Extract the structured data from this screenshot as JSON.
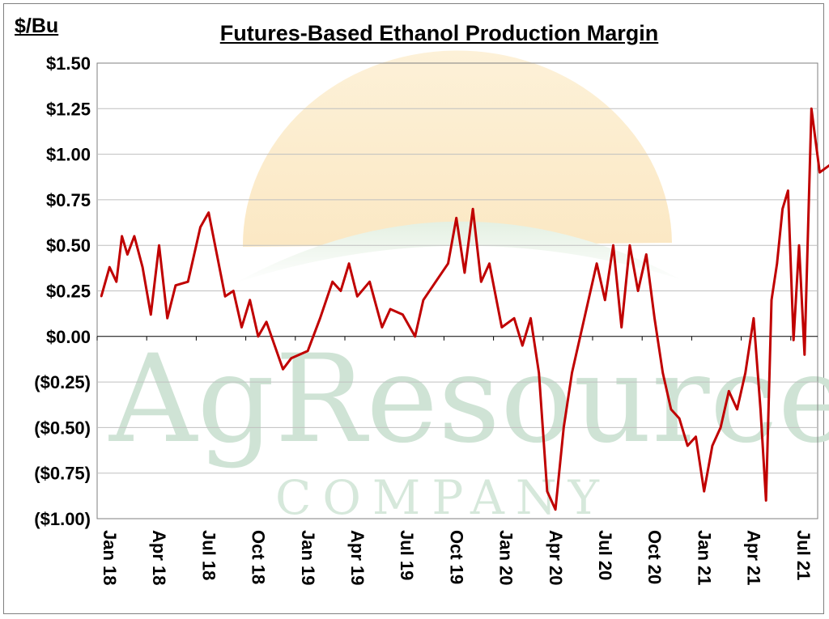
{
  "unit_label": "$/Bu",
  "watermark": {
    "name": "AgResource",
    "sub": "COMPANY"
  },
  "chart_data": {
    "type": "line",
    "title": "Futures-Based Ethanol Production Margin",
    "ylabel": "$/Bu",
    "xlabel": "",
    "ylim": [
      -1.0,
      1.5
    ],
    "yticks": [
      1.5,
      1.25,
      1.0,
      0.75,
      0.5,
      0.25,
      0.0,
      -0.25,
      -0.5,
      -0.75,
      -1.0
    ],
    "ytick_labels": [
      "$1.50",
      "$1.25",
      "$1.00",
      "$0.75",
      "$0.50",
      "$0.25",
      "$0.00",
      "($0.25)",
      "($0.50)",
      "($0.75)",
      "($1.00)"
    ],
    "xtick_labels": [
      "Jan 18",
      "Apr 18",
      "Jul 18",
      "Oct 18",
      "Jan 19",
      "Apr 19",
      "Jul 19",
      "Oct 19",
      "Jan 20",
      "Apr 20",
      "Jul 20",
      "Oct 20",
      "Jan 21",
      "Apr 21",
      "Jul 21"
    ],
    "grid": true,
    "line_color": "#c00000",
    "series": [
      {
        "x": [
          "2018-01",
          "2018-01",
          "2018-02",
          "2018-02",
          "2018-02",
          "2018-03",
          "2018-03",
          "2018-04",
          "2018-04",
          "2018-05",
          "2018-05",
          "2018-06",
          "2018-07",
          "2018-07",
          "2018-08",
          "2018-08",
          "2018-09",
          "2018-09",
          "2018-10",
          "2018-10",
          "2018-11",
          "2018-11",
          "2018-12",
          "2018-12",
          "2019-01",
          "2019-01",
          "2019-02",
          "2019-03",
          "2019-03",
          "2019-04",
          "2019-04",
          "2019-05",
          "2019-06",
          "2019-06",
          "2019-07",
          "2019-08",
          "2019-08",
          "2019-09",
          "2019-10",
          "2019-10",
          "2019-11",
          "2019-11",
          "2019-12",
          "2019-12",
          "2020-01",
          "2020-02",
          "2020-02",
          "2020-03",
          "2020-03",
          "2020-04",
          "2020-04",
          "2020-05",
          "2020-05",
          "2020-06",
          "2020-07",
          "2020-07",
          "2020-08",
          "2020-08",
          "2020-09",
          "2020-09",
          "2020-10",
          "2020-10",
          "2020-11",
          "2020-11",
          "2020-12",
          "2020-12",
          "2021-01",
          "2021-01",
          "2021-02",
          "2021-02",
          "2021-03",
          "2021-03",
          "2021-04",
          "2021-04",
          "2021-05",
          "2021-05",
          "2021-05",
          "2021-06",
          "2021-06",
          "2021-06",
          "2021-07",
          "2021-07",
          "2021-07",
          "2021-08",
          "2021-08",
          "2021-09"
        ],
        "y": [
          0.22,
          0.38,
          0.3,
          0.55,
          0.45,
          0.55,
          0.38,
          0.12,
          0.5,
          0.1,
          0.28,
          0.3,
          0.6,
          0.68,
          0.45,
          0.22,
          0.25,
          0.05,
          0.2,
          0.0,
          0.08,
          -0.05,
          -0.18,
          -0.12,
          -0.1,
          -0.08,
          0.1,
          0.3,
          0.25,
          0.4,
          0.22,
          0.3,
          0.05,
          0.15,
          0.12,
          0.0,
          0.2,
          0.3,
          0.4,
          0.65,
          0.35,
          0.7,
          0.3,
          0.4,
          0.05,
          0.1,
          -0.05,
          0.1,
          -0.2,
          -0.85,
          -0.95,
          -0.5,
          -0.2,
          0.1,
          0.4,
          0.2,
          0.5,
          0.05,
          0.5,
          0.25,
          0.45,
          0.1,
          -0.2,
          -0.4,
          -0.45,
          -0.6,
          -0.55,
          -0.85,
          -0.6,
          -0.5,
          -0.3,
          -0.4,
          -0.2,
          0.1,
          -0.4,
          -0.9,
          0.2,
          0.4,
          0.7,
          0.8,
          -0.02,
          0.5,
          -0.1,
          1.25,
          0.9,
          0.95
        ]
      }
    ]
  }
}
